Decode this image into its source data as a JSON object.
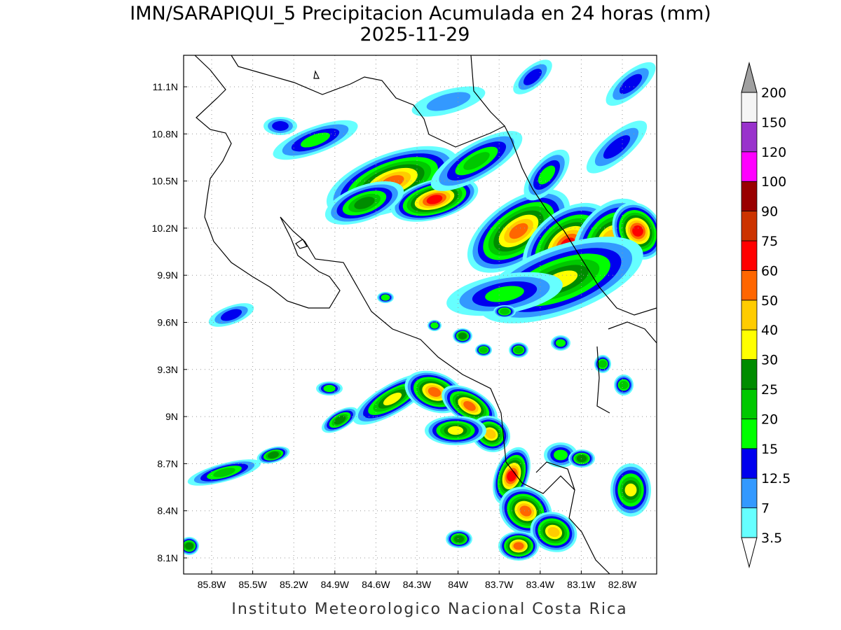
{
  "header": {
    "title": "IMN/SARAPIQUI_5 Precipitacion Acumulada en 24 horas (mm)",
    "date": "2025-11-29"
  },
  "map": {
    "xticks": [
      "85.8W",
      "85.5W",
      "85.2W",
      "84.9W",
      "84.6W",
      "84.3W",
      "84W",
      "83.7W",
      "83.4W",
      "83.1W",
      "82.8W"
    ],
    "yticks": [
      "11.1N",
      "10.8N",
      "10.5N",
      "10.2N",
      "9.9N",
      "9.6N",
      "9.3N",
      "9N",
      "8.7N",
      "8.4N",
      "8.1N"
    ]
  },
  "colorbar": {
    "levels": [
      3.5,
      7,
      12.5,
      15,
      20,
      25,
      30,
      40,
      50,
      60,
      75,
      90,
      100,
      120,
      150,
      200
    ],
    "colors": [
      "#66ffff",
      "#3399ff",
      "#0000ee",
      "#00ff00",
      "#00c800",
      "#008c00",
      "#ffff00",
      "#ffcc00",
      "#ff6600",
      "#ff0000",
      "#cc3300",
      "#990000",
      "#ff00ff",
      "#9933cc",
      "#f5f5f5"
    ],
    "over_color": "#a0a0a0"
  },
  "footer": "Instituto Meteorologico Nacional Costa Rica"
}
